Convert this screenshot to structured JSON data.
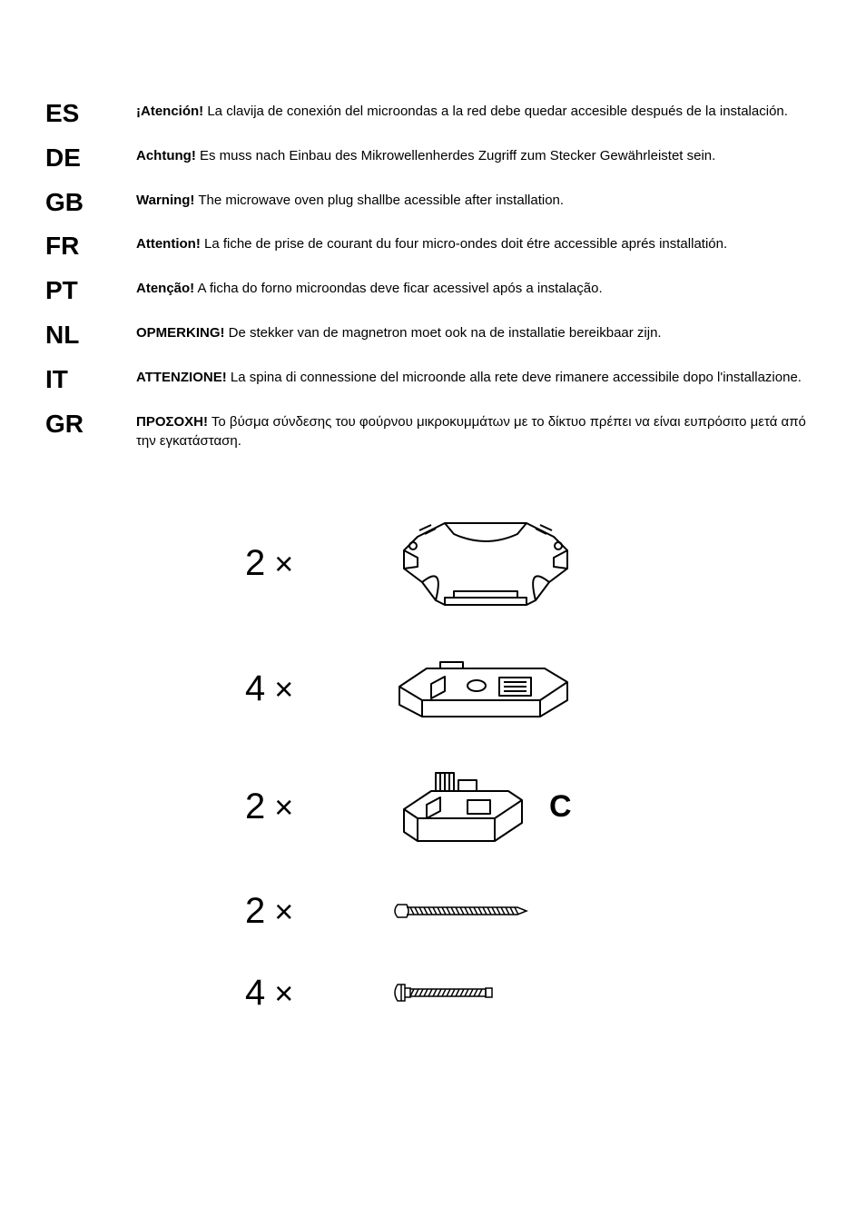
{
  "languages": [
    {
      "code": "ES",
      "bold": "¡Atención!",
      "text": " La clavija de conexión del microondas a la red debe quedar accesible después de la instalación."
    },
    {
      "code": "DE",
      "bold": "Achtung!",
      "text": " Es muss nach Einbau des Mikrowellenherdes Zugriff zum Stecker Gewährleistet sein."
    },
    {
      "code": "GB",
      "bold": "Warning!",
      "text": " The microwave oven plug shallbe acessible after installation."
    },
    {
      "code": "FR",
      "bold": "Attention!",
      "text": " La fiche de prise de courant du four micro-ondes doit étre accessible aprés installatión."
    },
    {
      "code": "PT",
      "bold": "Atenção!",
      "text": " A ficha do forno microondas deve ficar acessivel após a instalação."
    },
    {
      "code": "NL",
      "bold": "OPMERKING!",
      "text": " De stekker van de magnetron moet ook na de installatie bereikbaar zijn."
    },
    {
      "code": "IT",
      "bold": "ATTENZIONE!",
      "text": " La spina di connessione del microonde alla rete deve rimanere accessibile dopo l'installazione."
    },
    {
      "code": "GR",
      "bold": "ΠΡΟΣΟΧΗ!",
      "text": " Το βύσμα σύνδεσης του φούρνου μικροκυμμάτων με το δίκτυο πρέπει να  είναι ευπρόσιτο μετά από την εγκατάσταση."
    }
  ],
  "parts": [
    {
      "qty": "2",
      "icon": "bracket-top",
      "label": ""
    },
    {
      "qty": "4",
      "icon": "bracket-base",
      "label": ""
    },
    {
      "qty": "2",
      "icon": "bracket-small",
      "label": "C"
    },
    {
      "qty": "2",
      "icon": "screw-long",
      "label": ""
    },
    {
      "qty": "4",
      "icon": "screw-short",
      "label": ""
    }
  ],
  "colors": {
    "text": "#000000",
    "bg": "#ffffff",
    "stroke": "#000000"
  }
}
